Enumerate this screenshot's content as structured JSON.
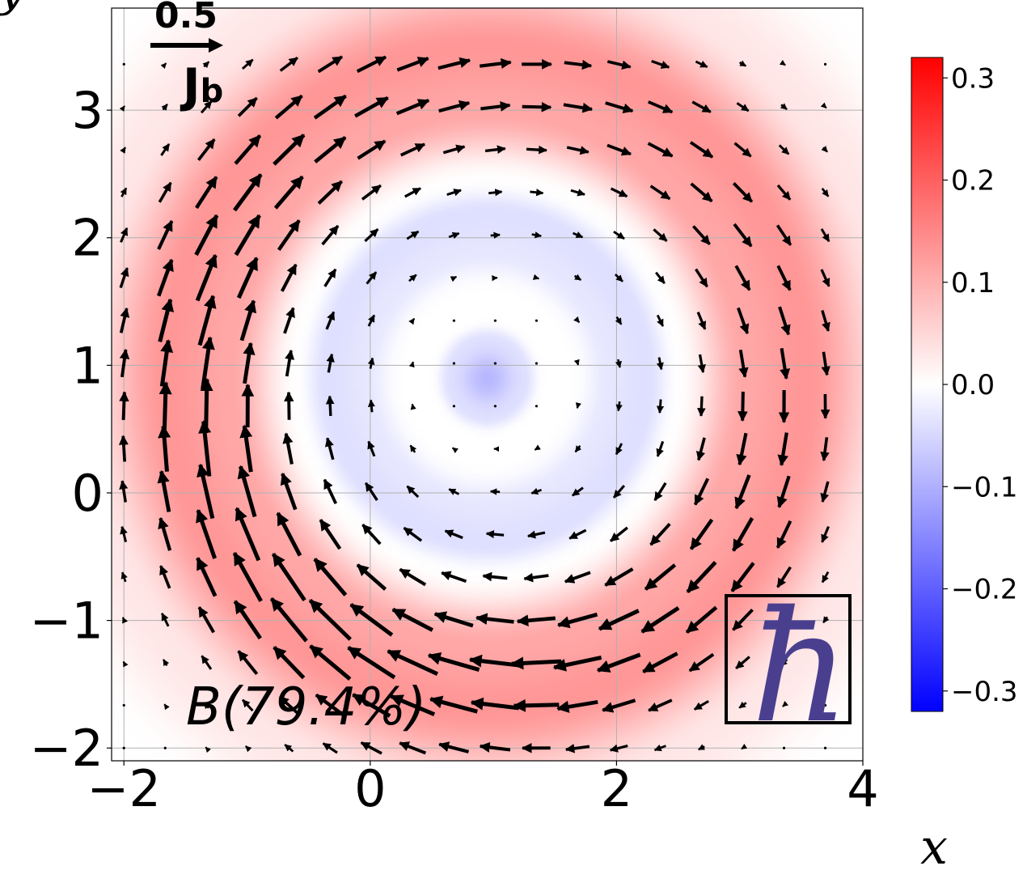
{
  "chart_data": {
    "type": "heatmap",
    "title": "",
    "xlabel": "x",
    "ylabel": "y",
    "xlim": [
      -2.1,
      4.0
    ],
    "ylim": [
      -2.1,
      3.8
    ],
    "xticks": [
      -2,
      0,
      2,
      4
    ],
    "yticks": [
      -2,
      -1,
      0,
      1,
      2,
      3
    ],
    "xtick_labels": [
      "−2",
      "0",
      "2",
      "4"
    ],
    "ytick_labels": [
      "−2",
      "−1",
      "0",
      "1",
      "2",
      "3"
    ],
    "grid": true,
    "field": {
      "description_center": [
        0.95,
        0.9
      ],
      "colormap": "bwr",
      "vmin": -0.32,
      "vmax": 0.32,
      "radial_profile": [
        {
          "r": 0.0,
          "value": -0.09
        },
        {
          "r": 0.3,
          "value": -0.04
        },
        {
          "r": 0.45,
          "value": 0.0
        },
        {
          "r": 0.7,
          "value": 0.0
        },
        {
          "r": 1.0,
          "value": -0.03
        },
        {
          "r": 1.3,
          "value": -0.04
        },
        {
          "r": 1.55,
          "value": 0.0
        },
        {
          "r": 2.1,
          "value": 0.11
        },
        {
          "r": 2.6,
          "value": 0.13
        },
        {
          "r": 3.3,
          "value": 0.03
        },
        {
          "r": 4.0,
          "value": 0.0
        }
      ]
    },
    "quiver": {
      "x_range": [
        -2.0,
        3.7
      ],
      "y_range": [
        -2.0,
        3.5
      ],
      "spacing": 0.335,
      "rotation": "clockwise",
      "magnitude_scale": 0.5
    },
    "quiver_key": {
      "value": "0.5",
      "label": "J",
      "subscript": "b"
    },
    "annotation": "B(79.4%)",
    "inset_symbol": "ħ",
    "inset_color": "#4a3f8f",
    "colorbar": {
      "ticks": [
        0.3,
        0.2,
        0.1,
        0.0,
        -0.1,
        -0.2,
        -0.3
      ],
      "tick_labels": [
        "0.3",
        "0.2",
        "0.1",
        "0.0",
        "−0.1",
        "−0.2",
        "−0.3"
      ]
    }
  }
}
